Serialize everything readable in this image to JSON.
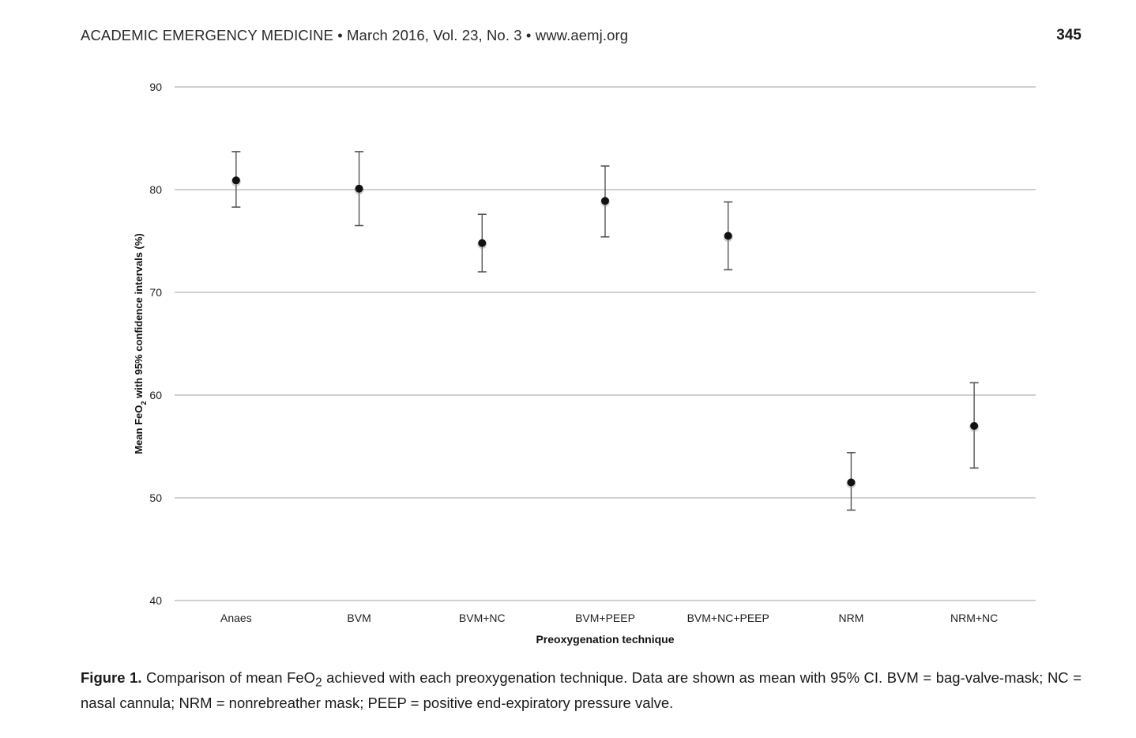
{
  "header": {
    "journal_line": "ACADEMIC EMERGENCY MEDICINE • March 2016, Vol. 23, No. 3 • www.aemj.org",
    "page_number": "345"
  },
  "chart_data": {
    "type": "scatter",
    "categories": [
      "Anaes",
      "BVM",
      "BVM+NC",
      "BVM+PEEP",
      "BVM+NC+PEEP",
      "NRM",
      "NRM+NC"
    ],
    "means": [
      80.9,
      80.1,
      74.8,
      78.9,
      75.5,
      51.5,
      57.0
    ],
    "ci_lower": [
      78.3,
      76.5,
      72.0,
      75.4,
      72.2,
      48.8,
      52.9
    ],
    "ci_upper": [
      83.7,
      83.7,
      77.6,
      82.3,
      78.8,
      54.4,
      61.2
    ],
    "ylim": [
      40,
      90
    ],
    "yticks": [
      "40",
      "50",
      "60",
      "70",
      "80",
      "90"
    ],
    "ylabel_parts": [
      "Mean FeO",
      "2",
      " with 95% confidence intervals (%)"
    ],
    "xlabel": "Preoxygenation technique",
    "grid": true,
    "marker_color": "#111111",
    "grid_color": "#b3b3b3"
  },
  "caption": {
    "label": "Figure 1.",
    "text_before_sub": " Comparison of mean FeO",
    "sub": "2",
    "text_after_sub": " achieved with each preoxygenation technique. Data are shown as mean with 95% CI. BVM = bag-valve-mask; NC = nasal cannula; NRM = nonrebreather mask; PEEP = positive end-expiratory pressure valve."
  }
}
